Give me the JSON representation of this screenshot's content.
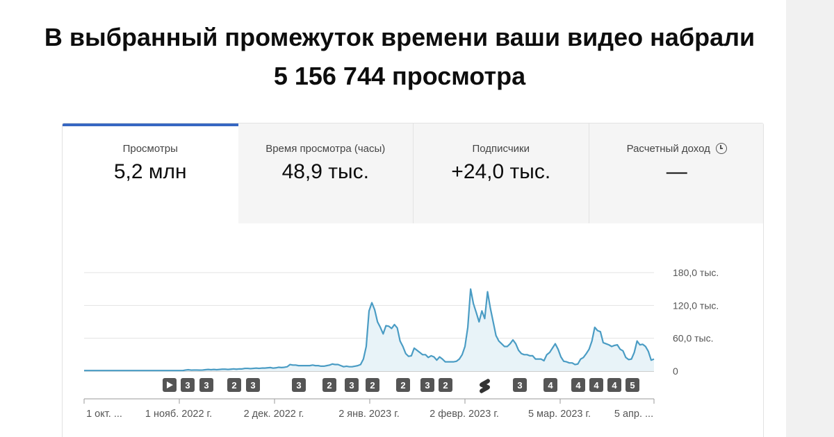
{
  "headline": {
    "line1": "В выбранный промежуток времени ваши видео набрали",
    "line2": "5 156 744 просмотра"
  },
  "tabs": [
    {
      "label": "Просмотры",
      "value": "5,2 млн",
      "active": true
    },
    {
      "label": "Время просмотра (часы)",
      "value": "48,9 тыс.",
      "active": false
    },
    {
      "label": "Подписчики",
      "value": "+24,0 тыс.",
      "active": false
    },
    {
      "label": "Расчетный доход",
      "value": "—",
      "active": false,
      "icon": "clock-icon"
    }
  ],
  "chart_data": {
    "type": "area",
    "title": "",
    "xlabel": "",
    "ylabel": "",
    "x_tick_labels": [
      "1 окт. ...",
      "1 нояб. 2022 г.",
      "2 дек. 2022 г.",
      "2 янв. 2023 г.",
      "2 февр. 2023 г.",
      "5 мар. 2023 г.",
      "5 апр. ..."
    ],
    "y_tick_labels": [
      "180,0 тыс.",
      "120,0 тыс.",
      "60,0 тыс.",
      "0"
    ],
    "y_ticks": [
      180000,
      120000,
      60000,
      0
    ],
    "ylim": [
      0,
      180000
    ],
    "grid": true,
    "colors": {
      "line": "#4a9cc4",
      "fill": "#e8f3f8",
      "accent": "#3767c2"
    },
    "series": [
      {
        "values": [
          1000,
          1000,
          1000,
          1000,
          1000,
          1000,
          1000,
          1000,
          1000,
          1000,
          1000,
          1000,
          1000,
          1000,
          1000,
          1000,
          1000,
          1000,
          1000,
          1000,
          1000,
          1000,
          1000,
          1000,
          1000,
          1000,
          1000,
          1000,
          1000,
          1000,
          1000,
          1000,
          1000,
          1000,
          1000,
          1000,
          2000,
          2500,
          1800,
          2000,
          2000,
          1800,
          2000,
          2500,
          3000,
          2500,
          3000,
          2500,
          3000,
          3500,
          3500,
          3000,
          3500,
          4000,
          3500,
          4000,
          4000,
          5000,
          5000,
          4500,
          5000,
          5500,
          5000,
          5500,
          5500,
          6000,
          6500,
          5500,
          6000,
          7000,
          6500,
          7000,
          8000,
          12000,
          11000,
          11000,
          10000,
          10000,
          10000,
          10000,
          10000,
          11000,
          10000,
          10000,
          9000,
          9000,
          10000,
          11000,
          13000,
          12000,
          12000,
          10000,
          8000,
          9000,
          8000,
          8000,
          9000,
          10000,
          12000,
          22000,
          45000,
          110000,
          125000,
          112000,
          90000,
          80000,
          68000,
          83000,
          82000,
          78000,
          85000,
          79000,
          55000,
          45000,
          32000,
          27000,
          28000,
          42000,
          38000,
          34000,
          30000,
          30000,
          25000,
          28000,
          26000,
          20000,
          26000,
          22000,
          17000,
          17000,
          17000,
          17000,
          18000,
          22000,
          30000,
          45000,
          80000,
          150000,
          123000,
          107000,
          90000,
          110000,
          96000,
          145000,
          115000,
          90000,
          65000,
          55000,
          50000,
          45000,
          45000,
          50000,
          57000,
          50000,
          38000,
          32000,
          30000,
          30000,
          28000,
          28000,
          22000,
          22000,
          22000,
          19000,
          30000,
          34000,
          42000,
          50000,
          40000,
          26000,
          18000,
          17000,
          15000,
          15000,
          12000,
          13000,
          22000,
          25000,
          32000,
          40000,
          55000,
          80000,
          74000,
          72000,
          52000,
          50000,
          48000,
          45000,
          47000,
          48000,
          40000,
          37000,
          25000,
          21000,
          22000,
          34000,
          55000,
          48000,
          49000,
          45000,
          36000,
          20000,
          22000
        ]
      }
    ],
    "annotation_markers": [
      "play-icon",
      "3",
      "3",
      "2",
      "3",
      "3",
      "2",
      "3",
      "2",
      "2",
      "3",
      "2",
      "shorts-icon",
      "3",
      "4",
      "4",
      "4",
      "4",
      "5"
    ]
  }
}
